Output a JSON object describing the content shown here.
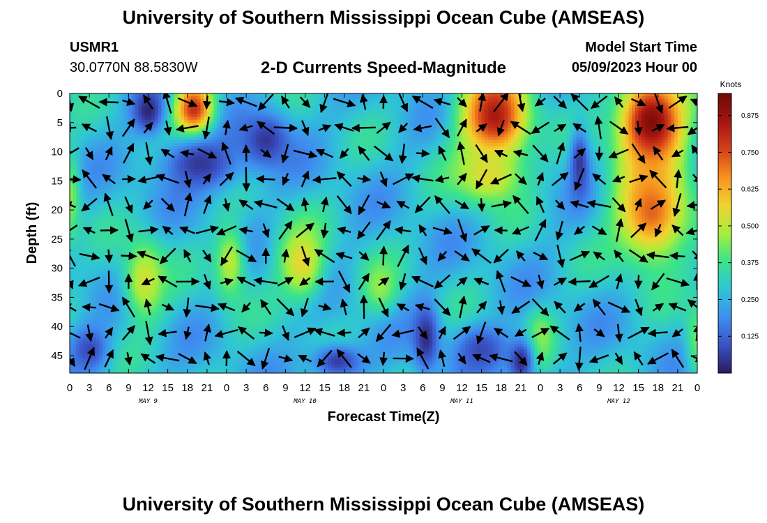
{
  "header": {
    "title": "University of Southern Mississippi Ocean Cube (AMSEAS)",
    "footer_title": "University of Southern Mississippi Ocean Cube (AMSEAS)",
    "station": "USMR1",
    "coordinates": "30.0770N  88.5830W",
    "plot_title": "2-D Currents Speed-Magnitude",
    "model_start_label": "Model Start Time",
    "model_start_value": "05/09/2023 Hour 00"
  },
  "chart_data": {
    "type": "heatmap",
    "title": "2-D Currents Speed-Magnitude",
    "xlabel": "Forecast Time(Z)",
    "ylabel": "Depth (ft)",
    "colorbar_label": "Knots",
    "x_tick_labels": [
      "0",
      "3",
      "6",
      "9",
      "12",
      "15",
      "18",
      "21",
      "0",
      "3",
      "6",
      "9",
      "12",
      "15",
      "18",
      "21",
      "0",
      "3",
      "6",
      "9",
      "12",
      "15",
      "18",
      "21",
      "0",
      "3",
      "6",
      "9",
      "12",
      "15",
      "18",
      "21",
      "0"
    ],
    "x_hours": [
      0,
      3,
      6,
      9,
      12,
      15,
      18,
      21,
      24,
      27,
      30,
      33,
      36,
      39,
      42,
      45,
      48,
      51,
      54,
      57,
      60,
      63,
      66,
      69,
      72,
      75,
      78,
      81,
      84,
      87,
      90,
      93,
      96
    ],
    "date_labels": [
      {
        "label": "MAY 9",
        "hour": 12
      },
      {
        "label": "MAY 10",
        "hour": 36
      },
      {
        "label": "MAY 11",
        "hour": 60
      },
      {
        "label": "MAY 12",
        "hour": 84
      }
    ],
    "y_ticks": [
      0,
      5,
      10,
      15,
      20,
      25,
      30,
      35,
      40,
      45
    ],
    "xlim": [
      0,
      96
    ],
    "ylim": [
      0,
      48
    ],
    "y_inverted": true,
    "colorbar_ticks": [
      0.125,
      0.25,
      0.375,
      0.5,
      0.625,
      0.75,
      0.875
    ],
    "colorbar_tick_labels": [
      "0.125",
      "0.250",
      "0.375",
      "0.500",
      "0.625",
      "0.750",
      "0.875"
    ],
    "colorbar_range": [
      0,
      0.95
    ],
    "colormap": [
      "#2b1a5e",
      "#3a52c6",
      "#3f8ef0",
      "#2fc4d6",
      "#3be38a",
      "#a6ee3c",
      "#f0d431",
      "#f6921f",
      "#d4401a",
      "#a41410",
      "#6e0a05"
    ],
    "hotspots": [
      {
        "hour": 11.5,
        "depth": 32,
        "speed": 0.53,
        "dh": 3.2,
        "dd": 7
      },
      {
        "hour": 24.5,
        "depth": 29,
        "speed": 0.5,
        "dh": 2.4,
        "dd": 6.5
      },
      {
        "hour": 35.5,
        "depth": 29,
        "speed": 0.56,
        "dh": 3.5,
        "dd": 6.5
      },
      {
        "hour": 47.5,
        "depth": 33,
        "speed": 0.46,
        "dh": 2.6,
        "dd": 4.5
      },
      {
        "hour": 19,
        "depth": 3,
        "speed": 0.82,
        "dh": 3,
        "dd": 5
      },
      {
        "hour": 65,
        "depth": 4,
        "speed": 0.85,
        "dh": 5,
        "dd": 8
      },
      {
        "hour": 64,
        "depth": 14,
        "speed": 0.55,
        "dh": 5,
        "dd": 5
      },
      {
        "hour": 89,
        "depth": 5,
        "speed": 0.93,
        "dh": 5,
        "dd": 8
      },
      {
        "hour": 89,
        "depth": 20,
        "speed": 0.72,
        "dh": 5.5,
        "dd": 9
      },
      {
        "hour": 72,
        "depth": 42,
        "speed": 0.46,
        "dh": 2,
        "dd": 4.5
      },
      {
        "hour": 0,
        "depth": 18,
        "speed": 0.45,
        "dh": 1.6,
        "dd": 8
      },
      {
        "hour": 96,
        "depth": 42,
        "speed": 0.42,
        "dh": 1.8,
        "dd": 7
      }
    ],
    "lows": [
      {
        "hour": 12,
        "depth": 3,
        "speed": 0.02,
        "dh": 2.5,
        "dd": 4
      },
      {
        "hour": 20,
        "depth": 12,
        "speed": 0.05,
        "dh": 6,
        "dd": 5
      },
      {
        "hour": 30,
        "depth": 8,
        "speed": 0.05,
        "dh": 4,
        "dd": 5
      },
      {
        "hour": 54.5,
        "depth": 42,
        "speed": 0.03,
        "dh": 2,
        "dd": 6
      },
      {
        "hour": 63,
        "depth": 44,
        "speed": 0.08,
        "dh": 4,
        "dd": 4
      },
      {
        "hour": 69,
        "depth": 46,
        "speed": 0.03,
        "dh": 2,
        "dd": 4
      },
      {
        "hour": 41,
        "depth": 46,
        "speed": 0.06,
        "dh": 4,
        "dd": 3
      },
      {
        "hour": 78,
        "depth": 12,
        "speed": 0.05,
        "dh": 1.5,
        "dd": 6
      },
      {
        "hour": 3,
        "depth": 44,
        "speed": 0.08,
        "dh": 3,
        "dd": 4
      }
    ]
  }
}
